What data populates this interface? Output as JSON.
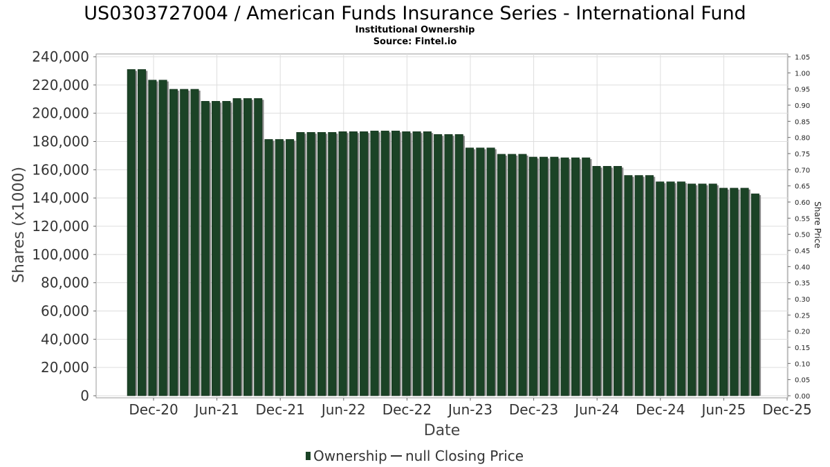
{
  "chart_data": {
    "type": "bar",
    "title": "US0303727004 / American Funds Insurance Series - International Fund",
    "subtitle_lines": [
      "Institutional Ownership",
      "Source: Fintel.io"
    ],
    "xlabel": "Date",
    "ylabel": "Shares (x1000)",
    "y2label": "Share Price",
    "ylim": [
      0,
      240000
    ],
    "y2lim": [
      0,
      1.05
    ],
    "y_ticks": [
      "0",
      "20,000",
      "40,000",
      "60,000",
      "80,000",
      "100,000",
      "120,000",
      "140,000",
      "160,000",
      "180,000",
      "200,000",
      "220,000",
      "240,000"
    ],
    "y2_ticks": [
      "0.00",
      "0.05",
      "0.10",
      "0.15",
      "0.20",
      "0.25",
      "0.30",
      "0.35",
      "0.40",
      "0.45",
      "0.50",
      "0.55",
      "0.60",
      "0.65",
      "0.70",
      "0.75",
      "0.80",
      "0.85",
      "0.90",
      "0.95",
      "1.00",
      "1.05"
    ],
    "x_ticks": [
      "Dec-20",
      "Jun-21",
      "Dec-21",
      "Jun-22",
      "Dec-22",
      "Jun-23",
      "Dec-23",
      "Jun-24",
      "Dec-24",
      "Jun-25",
      "Dec-25"
    ],
    "grid": true,
    "legend_position": "bottom",
    "legend": [
      "Ownership",
      "null Closing Price"
    ],
    "bar_color": "#1b4326",
    "series": [
      {
        "name": "Ownership",
        "values": [
          231000,
          231000,
          223500,
          223500,
          217000,
          217000,
          217000,
          208500,
          208500,
          208500,
          210500,
          210500,
          210500,
          181500,
          181500,
          181500,
          186500,
          186500,
          186500,
          186500,
          187000,
          187000,
          187000,
          187500,
          187500,
          187500,
          187000,
          187000,
          187000,
          185000,
          185000,
          185000,
          175500,
          175500,
          175500,
          171000,
          171000,
          171000,
          169000,
          169000,
          169000,
          168500,
          168500,
          168500,
          162500,
          162500,
          162500,
          156000,
          156000,
          156000,
          151500,
          151500,
          151500,
          150000,
          150000,
          150000,
          147000,
          147000,
          147000,
          143000
        ]
      }
    ]
  }
}
